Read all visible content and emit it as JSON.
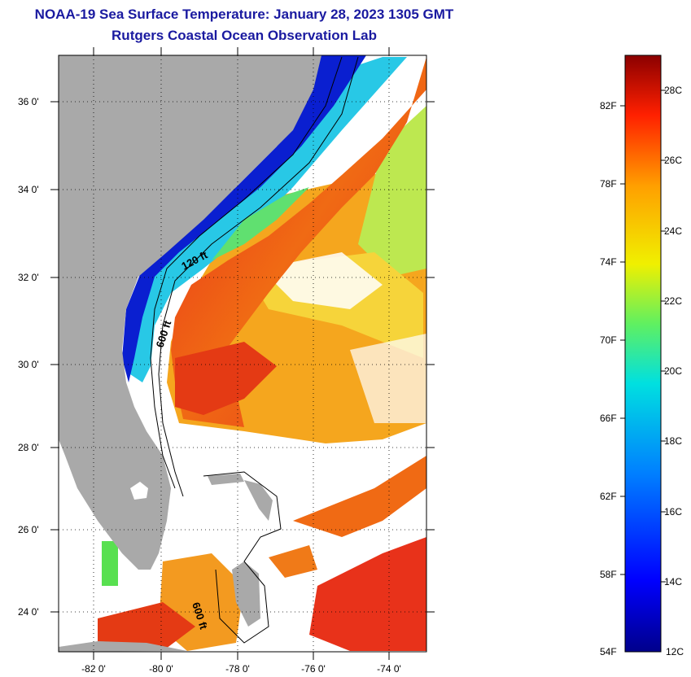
{
  "header": {
    "title_line1": "NOAA-19 Sea Surface Temperature:  January 28, 2023 1305 GMT",
    "title_line2": "Rutgers Coastal Ocean Observation Lab"
  },
  "map": {
    "longitude_labels": [
      "-82 0'",
      "-80 0'",
      "-78 0'",
      "-76 0'",
      "-74 0'"
    ],
    "latitude_labels": [
      "36 0'",
      "34 0'",
      "32 0'",
      "30 0'",
      "28 0'",
      "26 0'",
      "24 0'"
    ],
    "contour_labels": [
      "120 ft",
      "600 ft",
      "600 ft"
    ],
    "colors": {
      "land": "#a9a9a9",
      "no_data": "#ffffff",
      "cold_shelf": "#0a1fd0",
      "mid": "#1fd6e0",
      "warm": "#f5a000",
      "gulf_stream": "#e8321a"
    }
  },
  "colorbar": {
    "fahrenheit_labels": [
      "82F",
      "78F",
      "74F",
      "70F",
      "66F",
      "62F",
      "58F",
      "54F"
    ],
    "celsius_labels": [
      "28C",
      "26C",
      "24C",
      "22C",
      "20C",
      "18C",
      "16C",
      "14C",
      "12C"
    ],
    "min_celsius": 12,
    "max_celsius": 29
  }
}
